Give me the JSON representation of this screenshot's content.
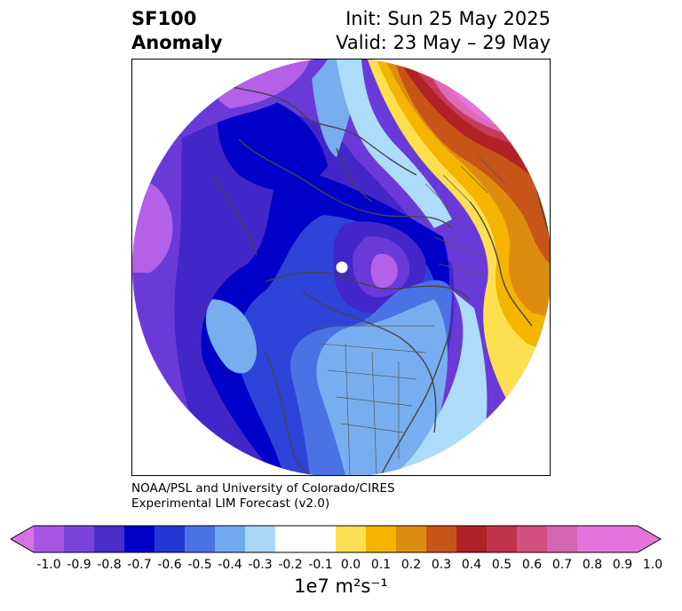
{
  "title": {
    "variable": "SF100",
    "type": "Anomaly",
    "init": "Init: Sun 25 May 2025",
    "valid": "Valid: 23 May – 29 May"
  },
  "credit": {
    "line1": "NOAA/PSL and University of Colorado/CIRES",
    "line2": "Experimental LIM Forecast (v2.0)"
  },
  "colorbar": {
    "units": "1e7 m²s⁻¹",
    "ticks": [
      "-1.0",
      "-0.9",
      "-0.8",
      "-0.7",
      "-0.6",
      "-0.5",
      "-0.4",
      "-0.3",
      "-0.2",
      "-0.1",
      "0.0",
      "0.1",
      "0.2",
      "0.3",
      "0.4",
      "0.5",
      "0.6",
      "0.7",
      "0.8",
      "0.9",
      "1.0"
    ],
    "colors": [
      "#a855e6",
      "#7a44dc",
      "#4a2ccc",
      "#0000c8",
      "#2238d6",
      "#4a72e4",
      "#72aaf0",
      "#aad8f8",
      "#ffffff",
      "#ffffff",
      "#fde050",
      "#f4b400",
      "#de8c10",
      "#c85518",
      "#b02225",
      "#c0334a",
      "#d15080",
      "#d864b4",
      "#e474dc",
      "#e474dc"
    ],
    "under_color": "#d672e6",
    "over_color": "#e474dc"
  },
  "map": {
    "projection": "north-polar-stereographic",
    "palette": {
      "purple_light": "#b560e8",
      "purple": "#6a3ad8",
      "blue_violet": "#4326c8",
      "navy": "#0000c8",
      "royal": "#2c44d8",
      "mid_blue": "#4a72e4",
      "light_blue": "#78aef0",
      "pale_blue": "#acdcfa",
      "yellow": "#fde050",
      "gold": "#f4b400",
      "orange": "#de8c10",
      "rust": "#c85518",
      "red": "#b02225",
      "rose": "#c83a5a",
      "pink": "#d15080",
      "magenta": "#de6ab8",
      "orchid": "#e474dc"
    }
  }
}
